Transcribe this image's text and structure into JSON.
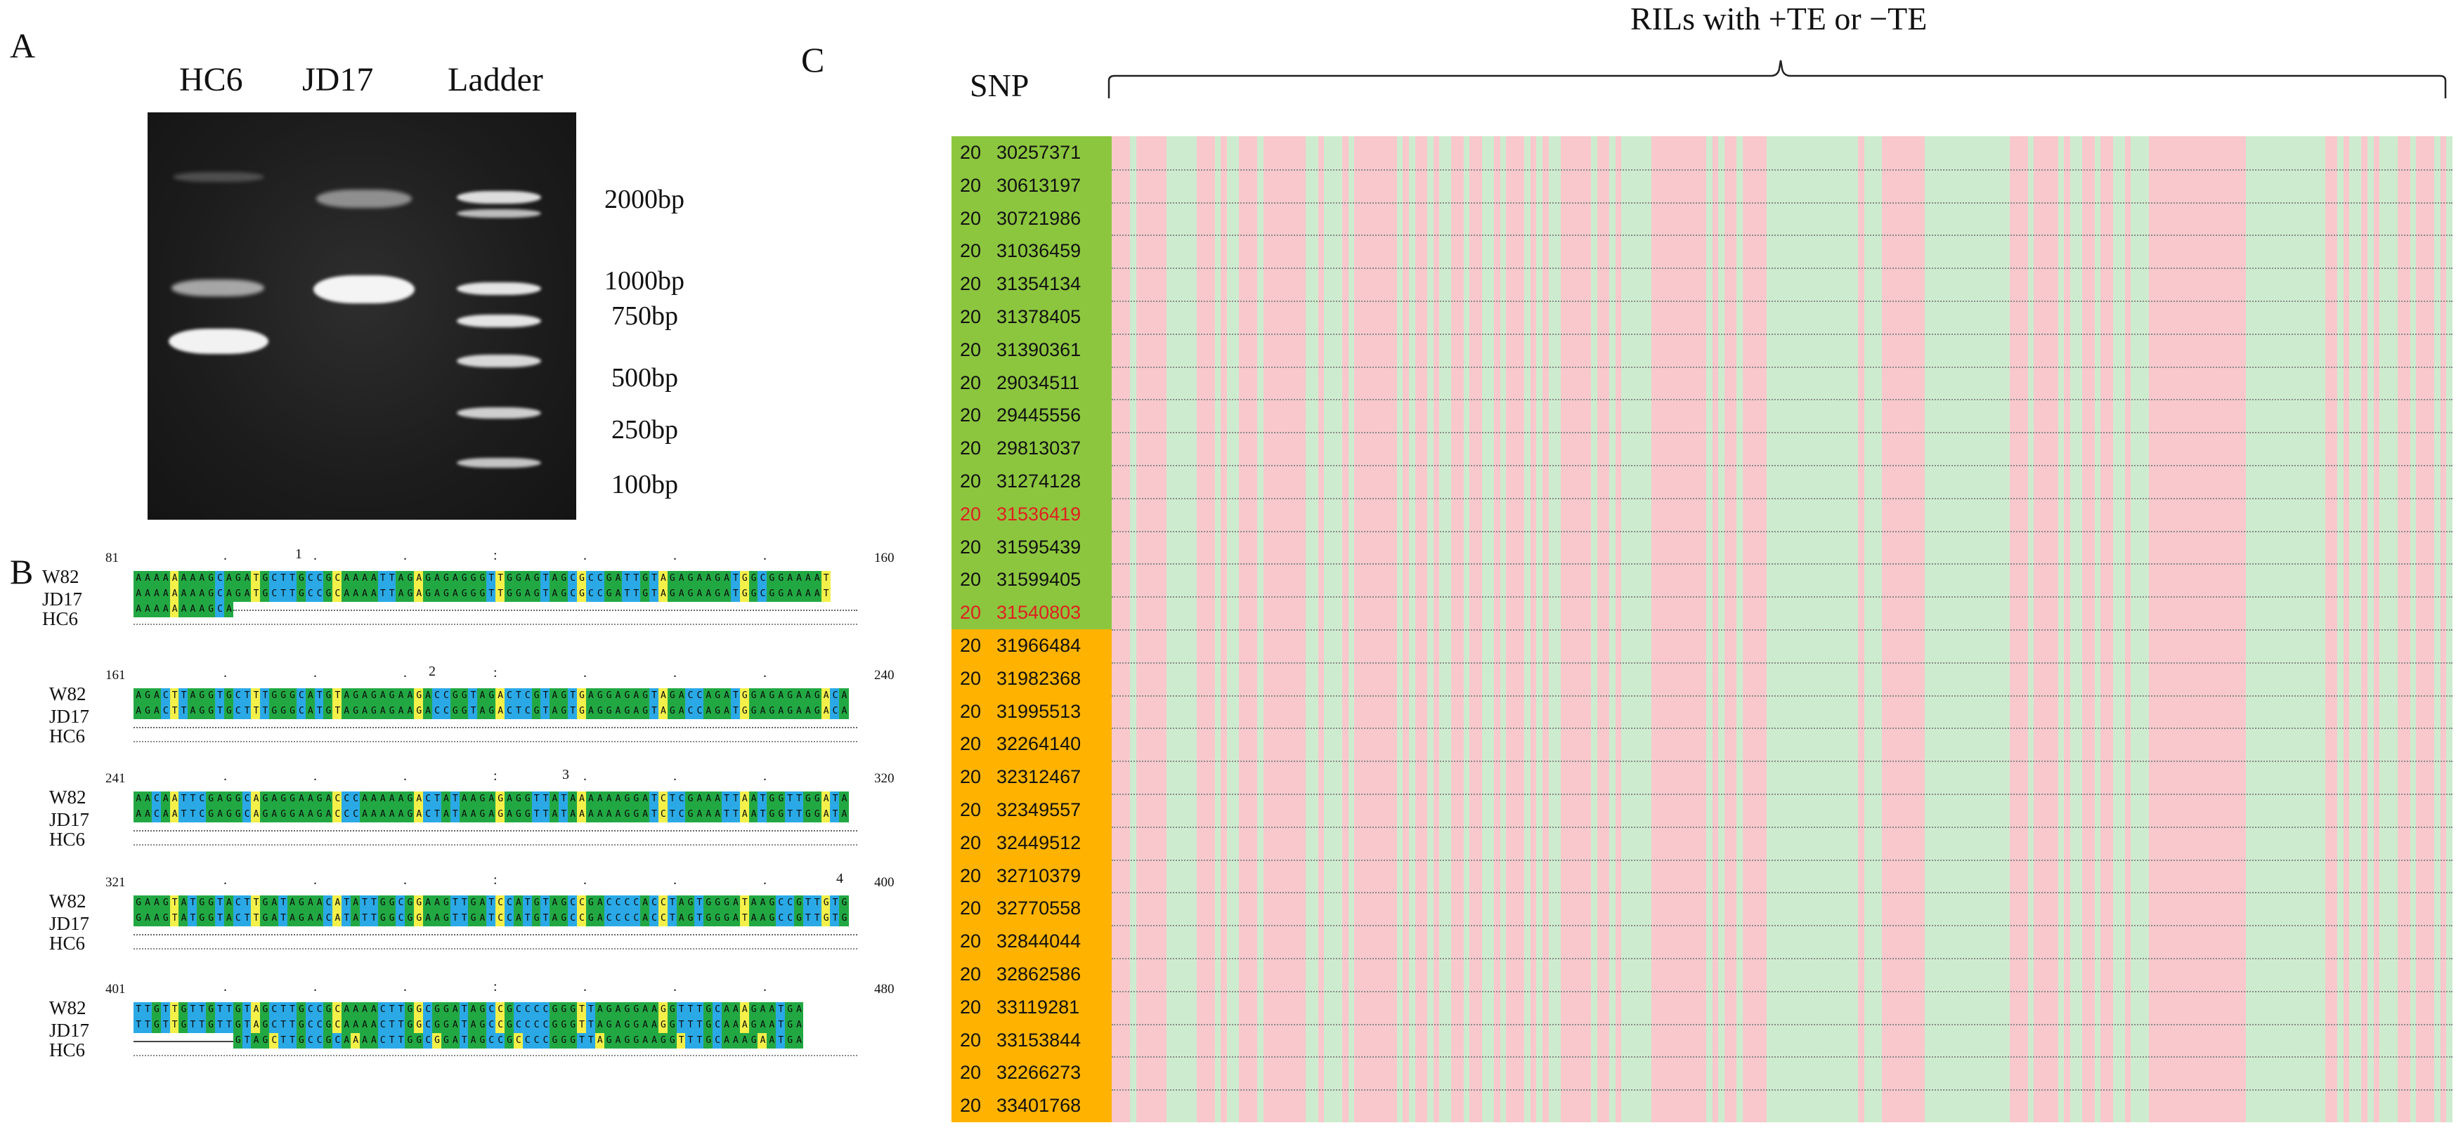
{
  "panel_labels": {
    "a": "A",
    "b": "B",
    "c": "C"
  },
  "gel": {
    "lanes": [
      "HC6",
      "JD17",
      "Ladder"
    ],
    "ladder_sizes": [
      "2000bp",
      "1000bp",
      "750bp",
      "500bp",
      "250bp",
      "100bp"
    ]
  },
  "alignment": {
    "sequence_names": [
      "W82",
      "JD17",
      "HC6"
    ],
    "blocks": [
      {
        "start": "81",
        "end": "160",
        "tick_marker": "1",
        "rows": [
          "AAAAAAAAGCAGATGCTTGCCGCAAAATTAGAGAGAGGGTTGGAGTAGCGCCGATTGTAGAGAAGATGGCGGAAAAT",
          "AAAAAAAAGCAGATGCTTGCCGCAAAATTAGAGAGAGGGTTGGAGTAGCGCCGATTGTAGAGAAGATGGCGGAAAAT",
          "AAAAAAAAGCA"
        ]
      },
      {
        "start": "161",
        "end": "240",
        "tick_marker": "2",
        "rows": [
          "AGACTTAGGTGCTTTGGGCATGTAGAGAGAAGACCGGTAGACTCGTAGTGAGGAGAGTAGACCAGATGGAGAGAAGACA",
          "AGACTTAGGTGCTTTGGGCATGTAGAGAGAAGACCGGTAGACTCGTAGTGAGGAGAGTAGACCAGATGGAGAGAAGACA",
          ""
        ]
      },
      {
        "start": "241",
        "end": "320",
        "tick_marker": "3",
        "rows": [
          "AACAATTCGAGGCAGAGGAAGACCCAAAAAGACTATAAGAGAGGTTATAAAAAAGGATCTCGAAATTAATGGTTGGATA",
          "AACAATTCGAGGCAGAGGAAGACCCAAAAAGACTATAAGAGAGGTTATAAAAAAGGATCTCGAAATTAATGGTTGGATA",
          ""
        ]
      },
      {
        "start": "321",
        "end": "400",
        "tick_marker": "4",
        "rows": [
          "GAAGTATGGTACTTGATAGAACATATTGGCGGAAGTTGATCCATGTAGCCGACCCCACCTAGTGGGATAAGCCGTTGTG",
          "GAAGTATGGTACTTGATAGAACATATTGGCGGAAGTTGATCCATGTAGCCGACCCCACCTAGTGGGATAAGCCGTTGTG",
          ""
        ]
      },
      {
        "start": "401",
        "end": "480",
        "tick_marker": "",
        "rows": [
          "TTGTTGTTGTTGTAGCTTGCCGCAAAACTTGGCGGATAGCCGCCCCGGGTTAGAGGAAGGTTTGCAAAGAATGA",
          "TTGTTGTTGTTGTAGCTTGCCGCAAAACTTGGCGGATAGCCGCCCCGGGTTAGAGGAAGGTTTGCAAAGAATGA",
          "GTAGCTTGCCGCAAAACTTGGCGGATAGCCGCCCCGGGTTAGAGGAAGGTTTGCAAAGAATGA"
        ]
      }
    ]
  },
  "genotype_map": {
    "snp_header": "SNP",
    "ril_title": "RILs with +TE or −TE",
    "colors": {
      "green_block": "#8cc63f",
      "orange_block": "#ffb300",
      "pink": "#f8c8cc",
      "light_green": "#cdeccf",
      "highlight_text": "#e02020"
    },
    "snps": [
      {
        "chr": "20",
        "pos": "30257371",
        "group": "green",
        "highlight": false
      },
      {
        "chr": "20",
        "pos": "30613197",
        "group": "green",
        "highlight": false
      },
      {
        "chr": "20",
        "pos": "30721986",
        "group": "green",
        "highlight": false
      },
      {
        "chr": "20",
        "pos": "31036459",
        "group": "green",
        "highlight": false
      },
      {
        "chr": "20",
        "pos": "31354134",
        "group": "green",
        "highlight": false
      },
      {
        "chr": "20",
        "pos": "31378405",
        "group": "green",
        "highlight": false
      },
      {
        "chr": "20",
        "pos": "31390361",
        "group": "green",
        "highlight": false
      },
      {
        "chr": "20",
        "pos": "29034511",
        "group": "green",
        "highlight": false
      },
      {
        "chr": "20",
        "pos": "29445556",
        "group": "green",
        "highlight": false
      },
      {
        "chr": "20",
        "pos": "29813037",
        "group": "green",
        "highlight": false
      },
      {
        "chr": "20",
        "pos": "31274128",
        "group": "green",
        "highlight": false
      },
      {
        "chr": "20",
        "pos": "31536419",
        "group": "green",
        "highlight": true
      },
      {
        "chr": "20",
        "pos": "31595439",
        "group": "green",
        "highlight": false
      },
      {
        "chr": "20",
        "pos": "31599405",
        "group": "green",
        "highlight": false
      },
      {
        "chr": "20",
        "pos": "31540803",
        "group": "green",
        "highlight": true
      },
      {
        "chr": "20",
        "pos": "31966484",
        "group": "orange",
        "highlight": false
      },
      {
        "chr": "20",
        "pos": "31982368",
        "group": "orange",
        "highlight": false
      },
      {
        "chr": "20",
        "pos": "31995513",
        "group": "orange",
        "highlight": false
      },
      {
        "chr": "20",
        "pos": "32264140",
        "group": "orange",
        "highlight": false
      },
      {
        "chr": "20",
        "pos": "32312467",
        "group": "orange",
        "highlight": false
      },
      {
        "chr": "20",
        "pos": "32349557",
        "group": "orange",
        "highlight": false
      },
      {
        "chr": "20",
        "pos": "32449512",
        "group": "orange",
        "highlight": false
      },
      {
        "chr": "20",
        "pos": "32710379",
        "group": "orange",
        "highlight": false
      },
      {
        "chr": "20",
        "pos": "32770558",
        "group": "orange",
        "highlight": false
      },
      {
        "chr": "20",
        "pos": "32844044",
        "group": "orange",
        "highlight": false
      },
      {
        "chr": "20",
        "pos": "32862586",
        "group": "orange",
        "highlight": false
      },
      {
        "chr": "20",
        "pos": "33119281",
        "group": "orange",
        "highlight": false
      },
      {
        "chr": "20",
        "pos": "33153844",
        "group": "orange",
        "highlight": false
      },
      {
        "chr": "20",
        "pos": "32266273",
        "group": "orange",
        "highlight": false
      },
      {
        "chr": "20",
        "pos": "33401768",
        "group": "orange",
        "highlight": false
      }
    ],
    "ril_genotypes": "PPPGPPPPPGGGGGPPPGPGGPPPGPPPPPPPGGPGGGPGPPPPPPPGPGPPGPGGPPGPPGGPGPPPGPGPGGPPPPPGPPGPGGGGGPPPPPPPPPGPGPPGPPPPGGGGGGGGGGGGGGGPGGGPPPPPPPGGGGGGGGGGGGGGPPPGPPPPGPGGPPGPPGGPGGGPPPPPPPPPPPPPPPPGGGGGGGGGGGGGPPGPGGPGPGGGPPGPPPGPG"
  }
}
